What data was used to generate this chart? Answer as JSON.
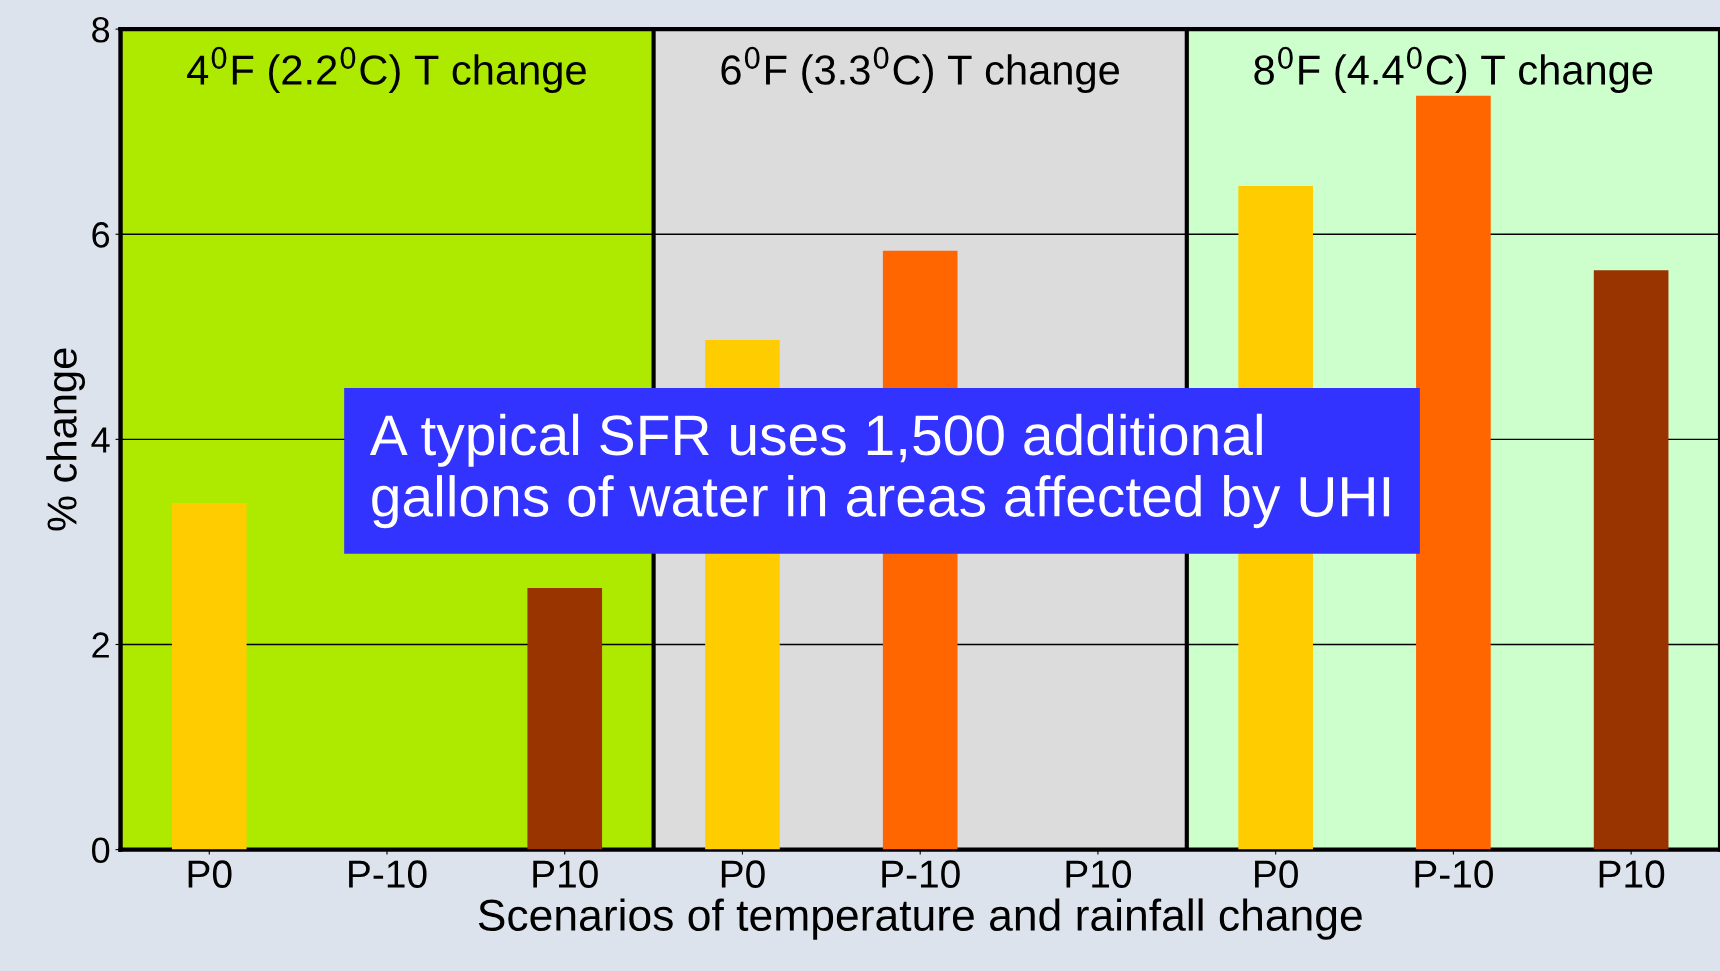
{
  "chart_data": {
    "type": "bar",
    "xlabel": "Scenarios of temperature and rainfall change",
    "ylabel": "% change",
    "categories": [
      "P0",
      "P-10",
      "P10",
      "P0",
      "P-10",
      "P10",
      "P0",
      "P-10",
      "P10"
    ],
    "values": [
      3.38,
      null,
      2.55,
      4.97,
      5.84,
      null,
      6.47,
      7.35,
      5.65
    ],
    "colors": [
      "#ffcc00",
      "#ff6600",
      "#993300",
      "#ffcc00",
      "#ff6600",
      "#993300",
      "#ffcc00",
      "#ff6600",
      "#993300"
    ],
    "ylim": [
      0,
      8
    ],
    "yticks": [
      0,
      2,
      4,
      6,
      8
    ],
    "grid": "y",
    "annotations": [
      "4$^{0}$F (2.2$^{0}$C) T change",
      "6$^{0}$F (3.3$^{0}$C) T change",
      "8$^{0}$F (4.4$^{0}$C) T change",
      "A typical SFR uses 1,500 additional\ngallons of water in areas affected by UHI"
    ]
  }
}
